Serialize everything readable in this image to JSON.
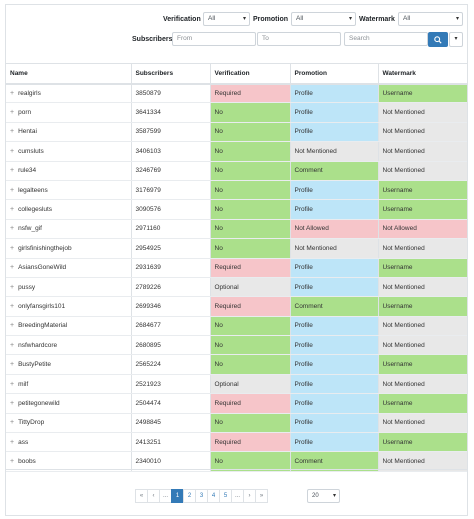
{
  "filters": {
    "verification_label": "Verification",
    "verification_value": "All",
    "promotion_label": "Promotion",
    "promotion_value": "All",
    "watermark_label": "Watermark",
    "watermark_value": "All",
    "subscribers_label": "Subscribers",
    "from_placeholder": "From",
    "to_placeholder": "To",
    "search_placeholder": "Search",
    "search_icon": "search-icon",
    "dropdown_icon": "caret-down-icon"
  },
  "table": {
    "headers": [
      "Name",
      "Subscribers",
      "Verification",
      "Promotion",
      "Watermark"
    ],
    "rows": [
      {
        "name": "realgirls",
        "subs": "3850879",
        "ver": "Required",
        "pro": "Profile",
        "wat": "Username"
      },
      {
        "name": "porn",
        "subs": "3641334",
        "ver": "No",
        "pro": "Profile",
        "wat": "Not Mentioned"
      },
      {
        "name": "Hentai",
        "subs": "3587599",
        "ver": "No",
        "pro": "Profile",
        "wat": "Not Mentioned"
      },
      {
        "name": "cumsluts",
        "subs": "3406103",
        "ver": "No",
        "pro": "Not Mentioned",
        "wat": "Not Mentioned"
      },
      {
        "name": "rule34",
        "subs": "3246769",
        "ver": "No",
        "pro": "Comment",
        "wat": "Not Mentioned"
      },
      {
        "name": "legalteens",
        "subs": "3176979",
        "ver": "No",
        "pro": "Profile",
        "wat": "Username"
      },
      {
        "name": "collegesluts",
        "subs": "3090576",
        "ver": "No",
        "pro": "Profile",
        "wat": "Username"
      },
      {
        "name": "nsfw_gif",
        "subs": "2971160",
        "ver": "No",
        "pro": "Not Allowed",
        "wat": "Not Allowed"
      },
      {
        "name": "girlsfinishingthejob",
        "subs": "2954925",
        "ver": "No",
        "pro": "Not Mentioned",
        "wat": "Not Mentioned"
      },
      {
        "name": "AsiansGoneWild",
        "subs": "2931639",
        "ver": "Required",
        "pro": "Profile",
        "wat": "Username"
      },
      {
        "name": "pussy",
        "subs": "2789226",
        "ver": "Optional",
        "pro": "Profile",
        "wat": "Not Mentioned"
      },
      {
        "name": "onlyfansgirls101",
        "subs": "2699346",
        "ver": "Required",
        "pro": "Comment",
        "wat": "Username"
      },
      {
        "name": "BreedingMaterial",
        "subs": "2684677",
        "ver": "No",
        "pro": "Profile",
        "wat": "Not Mentioned"
      },
      {
        "name": "nsfwhardcore",
        "subs": "2680895",
        "ver": "No",
        "pro": "Profile",
        "wat": "Not Mentioned"
      },
      {
        "name": "BustyPetite",
        "subs": "2565224",
        "ver": "No",
        "pro": "Profile",
        "wat": "Username"
      },
      {
        "name": "milf",
        "subs": "2521923",
        "ver": "Optional",
        "pro": "Profile",
        "wat": "Not Mentioned"
      },
      {
        "name": "petitegonewild",
        "subs": "2504474",
        "ver": "Required",
        "pro": "Profile",
        "wat": "Username"
      },
      {
        "name": "TittyDrop",
        "subs": "2498845",
        "ver": "No",
        "pro": "Profile",
        "wat": "Not Mentioned"
      },
      {
        "name": "ass",
        "subs": "2413251",
        "ver": "Required",
        "pro": "Profile",
        "wat": "Username"
      },
      {
        "name": "boobs",
        "subs": "2340010",
        "ver": "No",
        "pro": "Comment",
        "wat": "Not Mentioned"
      }
    ]
  },
  "colors": {
    "Required": "#f6c5c9",
    "No": "#abe08b",
    "Optional": "#e8e8e8",
    "Profile": "#bde5f8",
    "Comment": "#abe08b",
    "Not Mentioned": "#e8e8e8",
    "Not Allowed": "#f6c5c9",
    "Username": "#abe08b"
  },
  "pagination": {
    "first": "«",
    "prev": "‹",
    "ellipsis_left": "...",
    "pages": [
      "1",
      "2",
      "3",
      "4",
      "5"
    ],
    "ellipsis_right": "...",
    "next": "›",
    "last": "»",
    "active": "1",
    "per_page": "20"
  }
}
